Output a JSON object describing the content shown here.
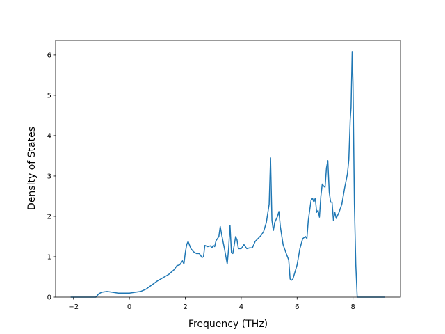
{
  "chart_data": {
    "type": "line",
    "xlabel": "Frequency (THz)",
    "ylabel": "Density of States",
    "xlim": [
      -2.64,
      9.7
    ],
    "ylim": [
      0,
      6.36
    ],
    "xticks": [
      {
        "value": -2,
        "label": "−2"
      },
      0,
      2,
      4,
      6,
      8
    ],
    "yticks": [
      0,
      1,
      2,
      3,
      4,
      5,
      6
    ],
    "grid": false,
    "series": [
      {
        "color": "#1f77b4",
        "x": [
          -2.1,
          -1.2,
          -1.1,
          -1.0,
          -0.8,
          -0.6,
          -0.4,
          -0.2,
          0,
          0.2,
          0.4,
          0.6,
          0.8,
          1.0,
          1.2,
          1.4,
          1.6,
          1.7,
          1.8,
          1.9,
          1.95,
          2.0,
          2.05,
          2.1,
          2.2,
          2.3,
          2.4,
          2.5,
          2.6,
          2.65,
          2.7,
          2.8,
          2.9,
          2.95,
          3.0,
          3.05,
          3.1,
          3.2,
          3.25,
          3.3,
          3.4,
          3.5,
          3.55,
          3.6,
          3.65,
          3.7,
          3.8,
          3.85,
          3.9,
          4.0,
          4.1,
          4.2,
          4.3,
          4.4,
          4.5,
          4.6,
          4.7,
          4.8,
          4.9,
          5.0,
          5.05,
          5.1,
          5.15,
          5.2,
          5.3,
          5.35,
          5.4,
          5.5,
          5.6,
          5.7,
          5.75,
          5.8,
          5.85,
          6.0,
          6.1,
          6.2,
          6.3,
          6.35,
          6.4,
          6.5,
          6.55,
          6.6,
          6.65,
          6.7,
          6.75,
          6.8,
          6.85,
          6.9,
          6.95,
          7.0,
          7.05,
          7.1,
          7.15,
          7.2,
          7.25,
          7.3,
          7.35,
          7.4,
          7.5,
          7.6,
          7.7,
          7.8,
          7.85,
          7.9,
          7.93,
          7.97,
          8.0,
          8.05,
          8.1,
          8.15,
          8.22,
          9.15
        ],
        "values": [
          0,
          0,
          0.08,
          0.12,
          0.14,
          0.12,
          0.1,
          0.1,
          0.1,
          0.12,
          0.14,
          0.2,
          0.3,
          0.4,
          0.48,
          0.56,
          0.68,
          0.78,
          0.8,
          0.9,
          0.82,
          1.1,
          1.3,
          1.38,
          1.2,
          1.12,
          1.08,
          1.08,
          0.98,
          1.0,
          1.28,
          1.25,
          1.27,
          1.22,
          1.28,
          1.25,
          1.4,
          1.5,
          1.75,
          1.55,
          1.2,
          0.82,
          1.2,
          1.78,
          1.1,
          1.08,
          1.5,
          1.42,
          1.2,
          1.2,
          1.3,
          1.2,
          1.22,
          1.22,
          1.38,
          1.45,
          1.52,
          1.62,
          1.85,
          2.3,
          3.45,
          1.9,
          1.65,
          1.85,
          2.0,
          2.12,
          1.75,
          1.3,
          1.1,
          0.92,
          0.45,
          0.42,
          0.45,
          0.8,
          1.2,
          1.45,
          1.5,
          1.45,
          1.9,
          2.4,
          2.45,
          2.35,
          2.45,
          2.1,
          2.15,
          1.98,
          2.5,
          2.8,
          2.75,
          2.72,
          3.2,
          3.38,
          2.6,
          2.35,
          2.35,
          1.9,
          2.1,
          1.95,
          2.1,
          2.3,
          2.7,
          3.05,
          3.4,
          4.4,
          4.7,
          6.07,
          5.3,
          2.3,
          0.8,
          0,
          0,
          0
        ]
      }
    ]
  }
}
